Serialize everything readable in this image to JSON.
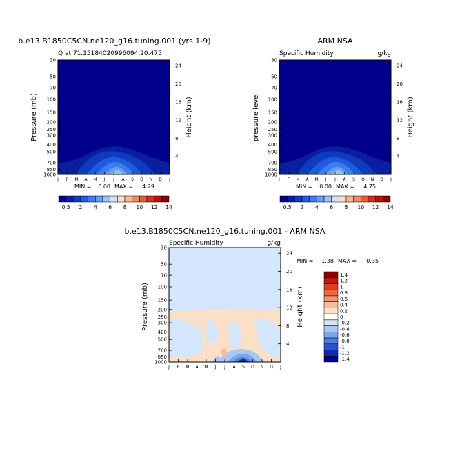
{
  "chart_data": [
    {
      "type": "heatmap",
      "title": "b.e13.B1850C5CN.ne120_g16.tuning.001 (yrs 1-9)",
      "left_label": "Q at 71.15184020996094,20.475",
      "right_label": "",
      "ylabel": "Pressure (mb)",
      "ylabel_right": "Height (km)",
      "x_ticks": [
        "J",
        "F",
        "M",
        "A",
        "M",
        "J",
        "J",
        "A",
        "S",
        "O",
        "N",
        "D",
        "J"
      ],
      "y_ticks": [
        "30",
        "50",
        "70",
        "100",
        "150",
        "200",
        "250",
        "300",
        "400",
        "500",
        "700",
        "850",
        "1000"
      ],
      "y_ticks_right": [
        "24",
        "20",
        "16",
        "12",
        "8",
        "4"
      ],
      "min_label": "MIN =",
      "min_value": "0.00",
      "max_label": "MAX =",
      "max_value": "4.29",
      "max": 4.29,
      "ylim": [
        1000,
        30
      ],
      "colorbar_labels": [
        "0.5",
        "2",
        "4",
        "6",
        "8",
        "10",
        "12",
        "14"
      ]
    },
    {
      "type": "heatmap",
      "title": "ARM NSA",
      "left_label": "Specific Humidity",
      "right_label": "g/kg",
      "ylabel": "pressure level",
      "ylabel_right": "Height (km)",
      "x_ticks": [
        "J",
        "F",
        "M",
        "A",
        "M",
        "J",
        "J",
        "A",
        "S",
        "O",
        "N",
        "D",
        "J"
      ],
      "y_ticks": [
        "30",
        "50",
        "70",
        "100",
        "150",
        "200",
        "250",
        "300",
        "400",
        "500",
        "700",
        "850",
        "1000"
      ],
      "y_ticks_right": [
        "24",
        "20",
        "16",
        "12",
        "8",
        "4"
      ],
      "min_label": "MIN =",
      "min_value": "0.00",
      "max_label": "MAX =",
      "max_value": "4.75",
      "max": 4.75,
      "ylim": [
        1000,
        30
      ],
      "colorbar_labels": [
        "0.5",
        "2",
        "4",
        "6",
        "8",
        "10",
        "12",
        "14"
      ]
    },
    {
      "type": "heatmap",
      "title": "b.e13.B1850C5CN.ne120_g16.tuning.001 - ARM NSA",
      "left_label": "Specific Humidity",
      "right_label": "g/kg",
      "ylabel": "Pressure (mb)",
      "ylabel_right": "Height (km)",
      "x_ticks": [
        "J",
        "F",
        "M",
        "A",
        "M",
        "J",
        "J",
        "A",
        "S",
        "O",
        "N",
        "D",
        "J"
      ],
      "y_ticks": [
        "30",
        "50",
        "70",
        "100",
        "150",
        "200",
        "250",
        "300",
        "400",
        "500",
        "700",
        "850",
        "1000"
      ],
      "y_ticks_right": [
        "24",
        "20",
        "16",
        "12",
        "8",
        "4"
      ],
      "min_label": "MIN =",
      "min_value": "-1.38",
      "max_label": "MAX =",
      "max_value": "0.35",
      "min": -1.38,
      "max": 0.35,
      "ylim": [
        1000,
        30
      ],
      "colorbar_labels": [
        "1.4",
        "1.2",
        "1",
        "0.8",
        "0.6",
        "0.4",
        "0.2",
        "0",
        "-0.2",
        "-0.4",
        "-0.6",
        "-0.8",
        "-1",
        "-1.2",
        "-1.4"
      ]
    }
  ],
  "palettes": {
    "seq": [
      "#00008c",
      "#0a1fa0",
      "#0f3cbf",
      "#1e5be0",
      "#3f7cf0",
      "#6a9ef4",
      "#9abff6",
      "#cfe3fb",
      "#fbe0cf",
      "#f8b894",
      "#f28b5e",
      "#e75d35",
      "#d6301c",
      "#b4140e",
      "#8c0000"
    ],
    "diff": [
      "#8c0000",
      "#c01a10",
      "#e03e22",
      "#f0693a",
      "#f5936c",
      "#f8bc9c",
      "#fbdfc6",
      "#ffffff",
      "#d4e6fb",
      "#a8c8f3",
      "#7ba6ec",
      "#4d7fe0",
      "#2a55cf",
      "#1029a8",
      "#00008c"
    ]
  }
}
